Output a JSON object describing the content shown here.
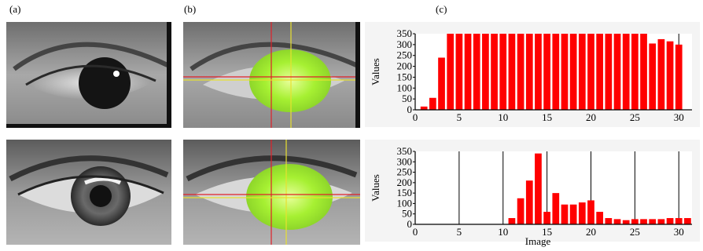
{
  "panel_labels": [
    "(a)",
    "(b)",
    "(c)"
  ],
  "colors": {
    "bar": "#ff0000",
    "grid": "#000000",
    "detection": "#9eea2a",
    "crosshair_red": "#e0202a",
    "crosshair_yellow": "#e8e030"
  },
  "chart_data": [
    {
      "type": "bar",
      "ylabel": "Values",
      "xlabel": "",
      "xlim": [
        0,
        31.5
      ],
      "ylim": [
        0,
        350
      ],
      "x_ticks": [
        0,
        5,
        10,
        15,
        20,
        25,
        30
      ],
      "y_ticks": [
        0,
        50,
        100,
        150,
        200,
        250,
        300,
        350
      ],
      "grid": "vertical",
      "categories": [
        1,
        2,
        3,
        4,
        5,
        6,
        7,
        8,
        9,
        10,
        11,
        12,
        13,
        14,
        15,
        16,
        17,
        18,
        19,
        20,
        21,
        22,
        23,
        24,
        25,
        26,
        27,
        28,
        29,
        30,
        31
      ],
      "values": [
        15,
        55,
        240,
        350,
        350,
        350,
        350,
        350,
        350,
        350,
        350,
        350,
        350,
        350,
        350,
        350,
        350,
        350,
        350,
        350,
        350,
        350,
        350,
        350,
        350,
        350,
        305,
        325,
        315,
        300,
        0
      ]
    },
    {
      "type": "bar",
      "ylabel": "Values",
      "xlabel": "Image",
      "xlim": [
        0,
        31.5
      ],
      "ylim": [
        0,
        350
      ],
      "x_ticks": [
        0,
        5,
        10,
        15,
        20,
        25,
        30
      ],
      "y_ticks": [
        0,
        50,
        100,
        150,
        200,
        250,
        300,
        350
      ],
      "grid": "vertical",
      "categories": [
        1,
        2,
        3,
        4,
        5,
        6,
        7,
        8,
        9,
        10,
        11,
        12,
        13,
        14,
        15,
        16,
        17,
        18,
        19,
        20,
        21,
        22,
        23,
        24,
        25,
        26,
        27,
        28,
        29,
        30,
        31
      ],
      "values": [
        0,
        0,
        0,
        0,
        0,
        0,
        0,
        0,
        0,
        0,
        30,
        125,
        210,
        340,
        60,
        150,
        95,
        95,
        105,
        115,
        60,
        30,
        25,
        20,
        25,
        25,
        25,
        25,
        30,
        30,
        30
      ]
    }
  ]
}
